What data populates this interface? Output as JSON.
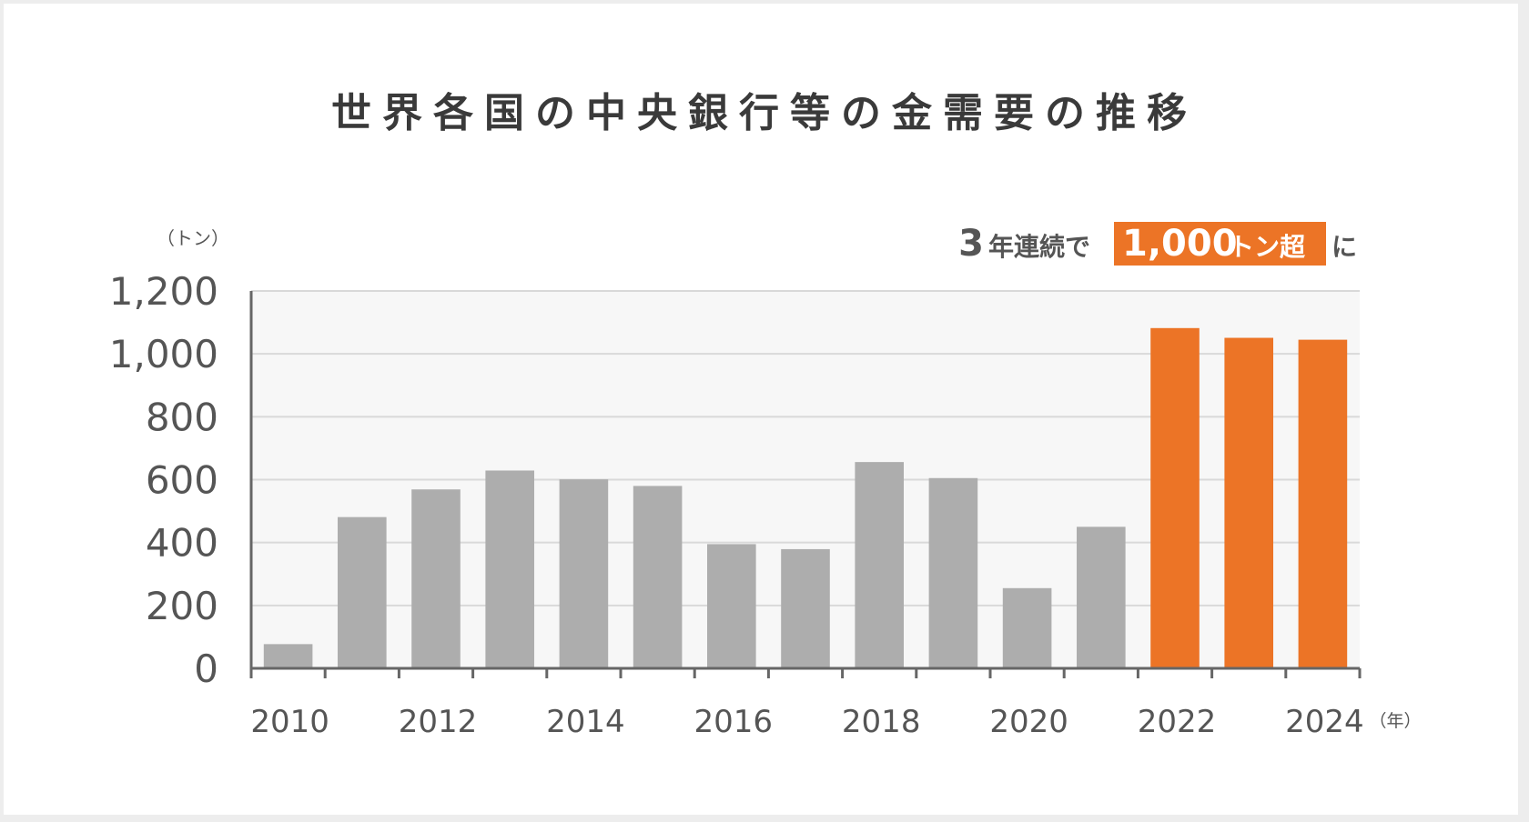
{
  "chart_data": {
    "type": "bar",
    "title": "世界各国の中央銀行等の金需要の推移",
    "y_unit": "（トン）",
    "x_unit": "（年）",
    "ylim": [
      0,
      1200
    ],
    "yticks": [
      "0",
      "200",
      "400",
      "600",
      "800",
      "1,000",
      "1,200"
    ],
    "xtick_labels": [
      "2010",
      "2012",
      "2014",
      "2016",
      "2018",
      "2020",
      "2022",
      "2024"
    ],
    "grid": true,
    "categories": [
      "2010",
      "2011",
      "2012",
      "2013",
      "2014",
      "2015",
      "2016",
      "2017",
      "2018",
      "2019",
      "2020",
      "2021",
      "2022",
      "2023",
      "2024"
    ],
    "values": [
      77,
      481,
      569,
      629,
      601,
      580,
      395,
      379,
      656,
      605,
      255,
      450,
      1082,
      1051,
      1045
    ],
    "annotation": {
      "prefix_num": "3",
      "prefix_text": "年連続で",
      "highlight_num": "1,000",
      "highlight_text": "トン超",
      "suffix": "に"
    },
    "colors": {
      "base_bar": "#adadad",
      "highlight_bar": "#ec7426",
      "highlight_years": [
        "2022",
        "2023",
        "2024"
      ]
    }
  }
}
